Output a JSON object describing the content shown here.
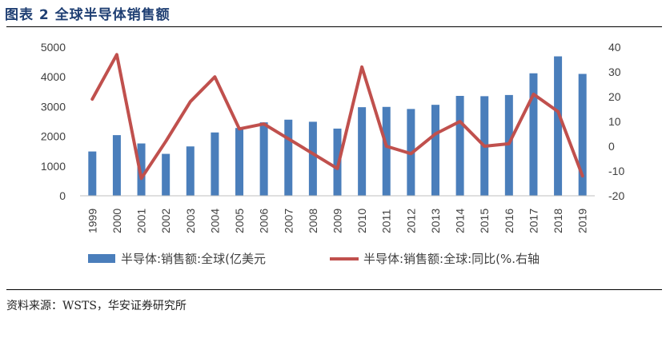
{
  "title": "图表 2 全球半导体销售额",
  "source": "资料来源：WSTS，华安证券研究所",
  "chart_data": {
    "type": "bar+line",
    "categories": [
      "1999",
      "2000",
      "2001",
      "2002",
      "2003",
      "2004",
      "2005",
      "2006",
      "2007",
      "2008",
      "2009",
      "2010",
      "2011",
      "2012",
      "2013",
      "2014",
      "2015",
      "2016",
      "2017",
      "2018",
      "2019"
    ],
    "series": [
      {
        "name": "半导体:销售额:全球(亿美元",
        "type": "bar",
        "axis": "left",
        "color": "#4a7ebb",
        "values": [
          1490,
          2040,
          1760,
          1410,
          1660,
          2130,
          2280,
          2470,
          2560,
          2490,
          2260,
          2980,
          2990,
          2920,
          3060,
          3360,
          3350,
          3390,
          4120,
          4690,
          4100
        ]
      },
      {
        "name": "半导体:销售额:全球:同比(%.右轴",
        "type": "line",
        "axis": "right",
        "color": "#c0504d",
        "values": [
          19,
          37,
          -13,
          2,
          18,
          28,
          7,
          9,
          3,
          -3,
          -9,
          32,
          0,
          -3,
          5,
          10,
          0,
          1,
          21,
          14,
          -12
        ]
      }
    ],
    "y_left": {
      "ylim": [
        0,
        5000
      ],
      "ticks": [
        0,
        1000,
        2000,
        3000,
        4000,
        5000
      ]
    },
    "y_right": {
      "ylim": [
        -20,
        40
      ],
      "ticks": [
        -20,
        -10,
        0,
        10,
        20,
        30,
        40
      ]
    },
    "legend_position": "bottom",
    "grid": false
  }
}
